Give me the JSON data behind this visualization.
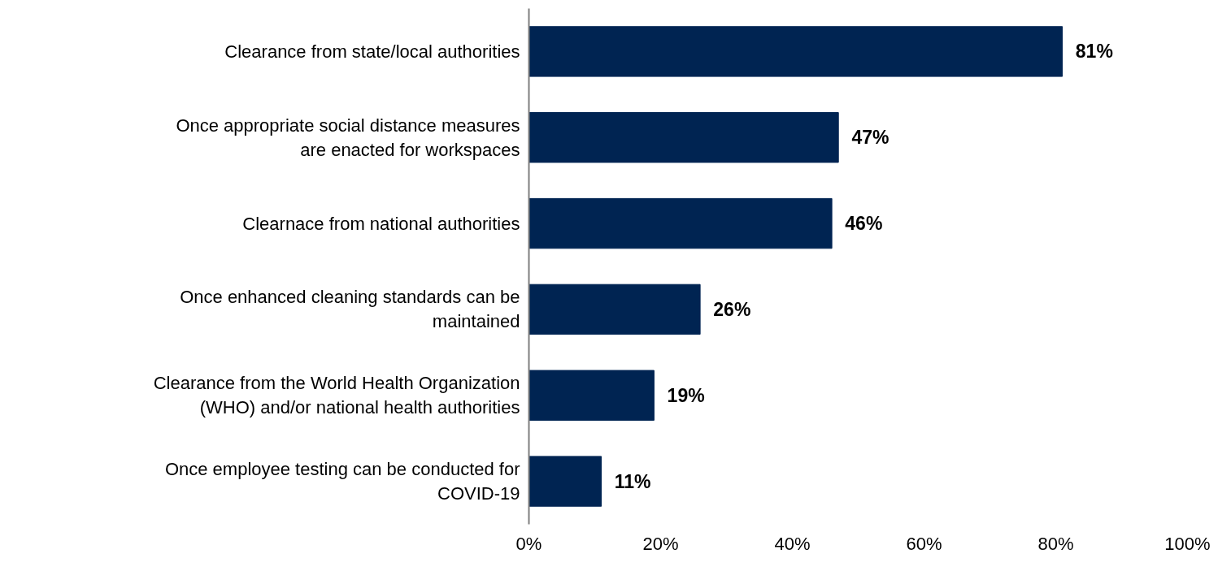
{
  "chart_data": {
    "type": "bar",
    "orientation": "horizontal",
    "categories": [
      "Clearance from state/local authorities",
      "Once appropriate social distance measures\nare enacted for workspaces",
      "Clearnace from national authorities",
      "Once enhanced cleaning standards can be\nmaintained",
      "Clearance from the World Health Organization\n(WHO) and/or national health authorities",
      "Once employee testing can be conducted for\nCOVID-19"
    ],
    "values": [
      81,
      47,
      46,
      26,
      19,
      11
    ],
    "value_labels": [
      "81%",
      "47%",
      "46%",
      "26%",
      "19%",
      "11%"
    ],
    "color": "#002452",
    "xlim": [
      0,
      100
    ],
    "xticks": [
      {
        "value": 0,
        "label": "0%"
      },
      {
        "value": 20,
        "label": "20%"
      },
      {
        "value": 40,
        "label": "40%"
      },
      {
        "value": 60,
        "label": "60%"
      },
      {
        "value": 80,
        "label": "80%"
      },
      {
        "value": 100,
        "label": "100%"
      }
    ],
    "grid": false
  }
}
